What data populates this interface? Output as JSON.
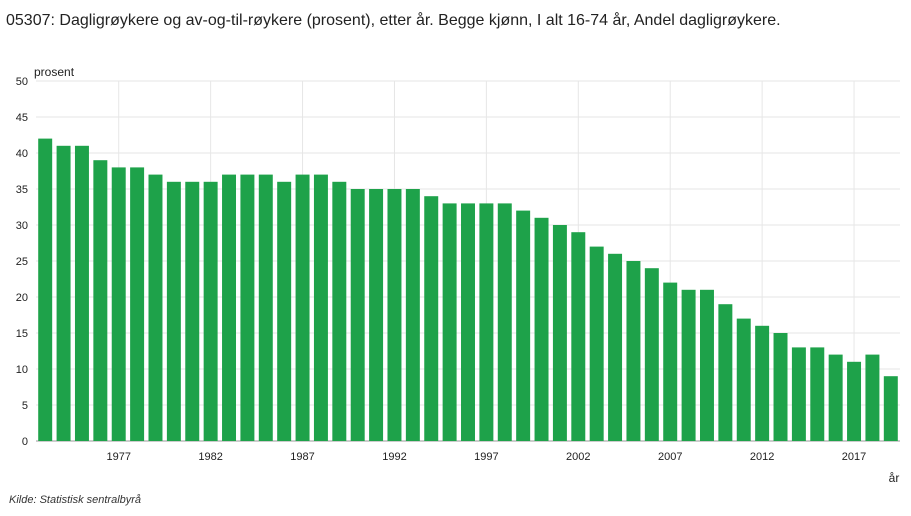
{
  "title": "05307: Dagligrøykere og av-og-til-røykere (prosent), etter år. Begge kjønn, I alt 16-74 år, Andel dagligrøykere.",
  "source": "Kilde:  Statistisk sentralbyrå",
  "chart_data": {
    "type": "bar",
    "ylabel": "prosent",
    "xlabel": "år",
    "ylim": [
      0,
      50
    ],
    "yticks": [
      0,
      5,
      10,
      15,
      20,
      25,
      30,
      35,
      40,
      45,
      50
    ],
    "grid": true,
    "bar_color": "#1ea24a",
    "categories": [
      1973,
      1974,
      1975,
      1976,
      1977,
      1978,
      1979,
      1980,
      1981,
      1982,
      1983,
      1984,
      1985,
      1986,
      1987,
      1988,
      1989,
      1990,
      1991,
      1992,
      1993,
      1994,
      1995,
      1996,
      1997,
      1998,
      1999,
      2000,
      2001,
      2002,
      2003,
      2004,
      2005,
      2006,
      2007,
      2008,
      2009,
      2010,
      2011,
      2012,
      2013,
      2014,
      2015,
      2016,
      2017,
      2018,
      2019
    ],
    "values": [
      42,
      41,
      41,
      39,
      38,
      38,
      37,
      36,
      36,
      36,
      37,
      37,
      37,
      36,
      37,
      37,
      36,
      35,
      35,
      35,
      35,
      34,
      33,
      33,
      33,
      33,
      32,
      31,
      30,
      29,
      27,
      26,
      25,
      24,
      22,
      21,
      21,
      19,
      17,
      16,
      15,
      13,
      13,
      12,
      11,
      12,
      9
    ],
    "xtick_labels": [
      1977,
      1982,
      1987,
      1992,
      1997,
      2002,
      2007,
      2012,
      2017
    ]
  }
}
